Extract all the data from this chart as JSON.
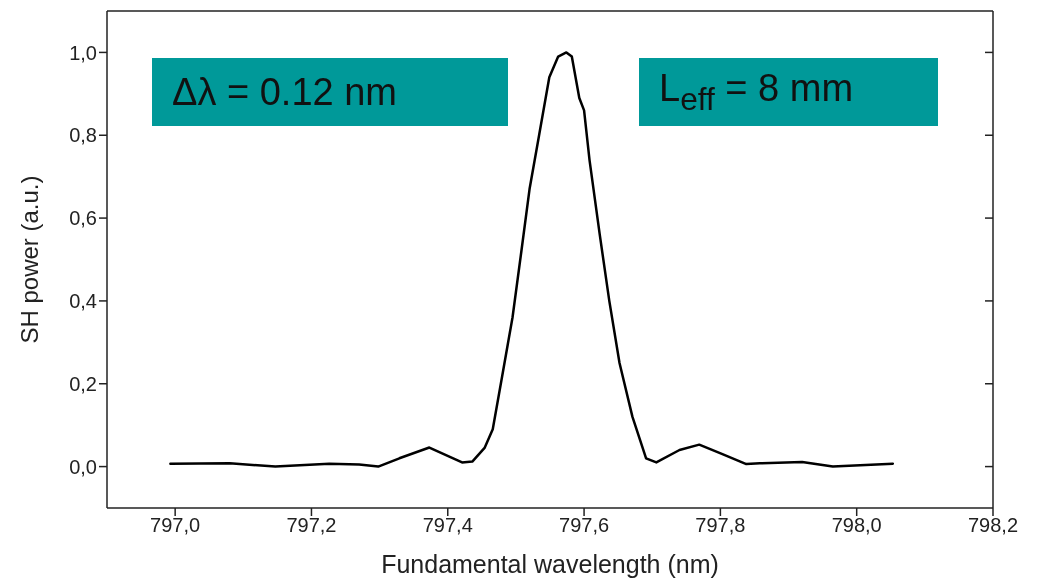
{
  "chart_data": {
    "type": "line",
    "xlabel": "Fundamental wavelength (nm)",
    "ylabel": "SH power (a.u.)",
    "annotations": [
      "Δλ = 0.12 nm",
      "L$_{eff}$ = 8 mm"
    ],
    "xlim": [
      796.9,
      798.2
    ],
    "xticks": [
      {
        "value": 797.0,
        "label": "797,0"
      },
      {
        "value": 797.2,
        "label": "797,2"
      },
      {
        "value": 797.4,
        "label": "797,4"
      },
      {
        "value": 797.6,
        "label": "797,6"
      },
      {
        "value": 797.8,
        "label": "797,8"
      },
      {
        "value": 798.0,
        "label": "798,0"
      },
      {
        "value": 798.2,
        "label": "798,2"
      }
    ],
    "ylim": [
      -0.1,
      1.1
    ],
    "yticks": [
      {
        "value": 0,
        "label": "0,0"
      },
      {
        "value": 0.2,
        "label": "0,2"
      },
      {
        "value": 0.4,
        "label": "0,4"
      },
      {
        "value": 0.6,
        "label": "0,6"
      },
      {
        "value": 0.8,
        "label": "0,8"
      },
      {
        "value": 1.0,
        "label": "1,0"
      }
    ],
    "marker": "none",
    "line_style": "solid",
    "series": [
      {
        "color": "#000000",
        "x": [
          796.993,
          797.08,
          797.147,
          797.226,
          797.27,
          797.298,
          797.329,
          797.373,
          797.421,
          797.436,
          797.454,
          797.466,
          797.48,
          797.495,
          797.508,
          797.52,
          797.534,
          797.549,
          797.562,
          797.574,
          797.582,
          797.593,
          797.6,
          797.608,
          797.623,
          797.637,
          797.652,
          797.671,
          797.691,
          797.706,
          797.74,
          797.769,
          797.803,
          797.838,
          797.858,
          797.92,
          797.965,
          798.053
        ],
        "values": [
          0.007,
          0.008,
          0.0,
          0.007,
          0.005,
          0.0,
          0.02,
          0.046,
          0.01,
          0.012,
          0.045,
          0.09,
          0.22,
          0.36,
          0.52,
          0.67,
          0.8,
          0.94,
          0.99,
          1.0,
          0.99,
          0.89,
          0.86,
          0.74,
          0.56,
          0.4,
          0.25,
          0.12,
          0.02,
          0.01,
          0.04,
          0.053,
          0.03,
          0.006,
          0.008,
          0.011,
          0.0,
          0.007
        ]
      }
    ]
  }
}
